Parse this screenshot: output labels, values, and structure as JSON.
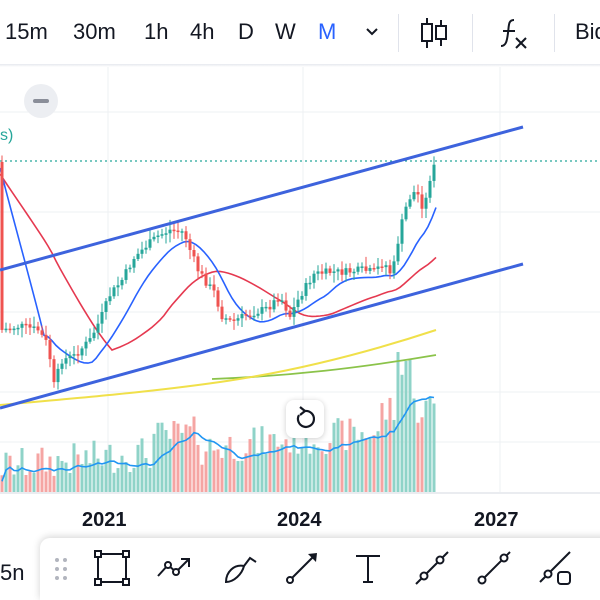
{
  "toolbar": {
    "intervals": [
      {
        "label": "15m",
        "active": false
      },
      {
        "label": "30m",
        "active": false
      },
      {
        "label": "1h",
        "active": false
      },
      {
        "label": "4h",
        "active": false
      },
      {
        "label": "D",
        "active": false
      },
      {
        "label": "W",
        "active": false
      },
      {
        "label": "M",
        "active": true
      }
    ],
    "bid_label": "Bid"
  },
  "legend": {
    "fragment": "s)"
  },
  "chart": {
    "years": [
      "2021",
      "2024",
      "2027"
    ]
  },
  "bottom": {
    "left_label": "5n"
  },
  "colors": {
    "up": "#26a69a",
    "down": "#ef5350",
    "channel": "#2962ff",
    "ma_fast": "#2962ff",
    "ma_mid": "#e53950",
    "ma_slow": "#f0e04a",
    "ma_long": "#8bc34a",
    "active": "#2962ff"
  },
  "icons": {
    "interval_menu": "chevron-down-icon",
    "chart_type": "candlestick-icon",
    "indicators": "fx-icon",
    "collapse": "minus-icon",
    "reset": "reset-rotate-icon",
    "drag": "drag-handle-icon",
    "draw_tools": [
      "rectangle-icon",
      "path-arrow-icon",
      "brush-icon",
      "arrow-line-icon",
      "text-icon",
      "trend-line-icon",
      "ray-line-icon",
      "extended-line-icon"
    ]
  }
}
